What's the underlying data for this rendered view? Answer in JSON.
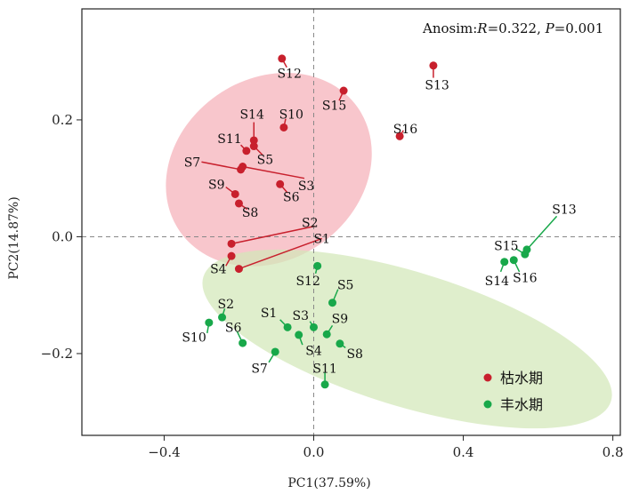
{
  "chart_data": {
    "type": "scatter",
    "xlabel": "PC1(37.59%)",
    "ylabel": "PC2(14.87%)",
    "xlim": [
      -0.62,
      0.82
    ],
    "ylim": [
      -0.34,
      0.39
    ],
    "xticks": [
      {
        "v": -0.4,
        "t": "−0.4"
      },
      {
        "v": 0.0,
        "t": "0.0"
      },
      {
        "v": 0.4,
        "t": "0.4"
      },
      {
        "v": 0.8,
        "t": "0.8"
      }
    ],
    "yticks": [
      {
        "v": 0.2,
        "t": "0.2"
      },
      {
        "v": 0.0,
        "t": "0.0"
      },
      {
        "v": -0.2,
        "t": "−0.2"
      }
    ],
    "annotation": {
      "prefix": "Anosim:",
      "r_symbol": "R",
      "r_value": "=0.322, ",
      "p_symbol": "P",
      "p_value": "=0.001"
    },
    "legend_position": "lower-right",
    "series": [
      {
        "name": "枯水期",
        "color": "#c8202d",
        "ellipse": {
          "cx": -0.12,
          "cy": 0.115,
          "rx": 0.29,
          "ry": 0.155,
          "angle": 35,
          "fill": "#f5b0b8"
        },
        "points": [
          {
            "id": "S1",
            "x": -0.2,
            "y": -0.055,
            "lx": 0.022,
            "ly": -0.003,
            "tx": 0.022,
            "ty": -0.003
          },
          {
            "id": "S2",
            "x": -0.22,
            "y": -0.012,
            "lx": -0.01,
            "ly": 0.024,
            "tx": 0.002,
            "ty": 0.018
          },
          {
            "id": "S3",
            "x": -0.19,
            "y": 0.12,
            "lx": -0.02,
            "ly": 0.087,
            "tx": -0.025,
            "ty": 0.1
          },
          {
            "id": "S4",
            "x": -0.22,
            "y": -0.033,
            "lx": -0.255,
            "ly": -0.055,
            "tx": -0.235,
            "ty": -0.05
          },
          {
            "id": "S5",
            "x": -0.16,
            "y": 0.155,
            "lx": -0.13,
            "ly": 0.132,
            "tx": -0.137,
            "ty": 0.14
          },
          {
            "id": "S6",
            "x": -0.09,
            "y": 0.09,
            "lx": -0.06,
            "ly": 0.068,
            "tx": -0.07,
            "ty": 0.075
          },
          {
            "id": "S7",
            "x": -0.195,
            "y": 0.115,
            "lx": -0.325,
            "ly": 0.128,
            "tx": -0.3,
            "ty": 0.128
          },
          {
            "id": "S8",
            "x": -0.2,
            "y": 0.057,
            "lx": -0.17,
            "ly": 0.042,
            "tx": -0.178,
            "ty": 0.047
          },
          {
            "id": "S9",
            "x": -0.21,
            "y": 0.073,
            "lx": -0.26,
            "ly": 0.09,
            "tx": -0.235,
            "ty": 0.085
          },
          {
            "id": "S10",
            "x": -0.08,
            "y": 0.187,
            "lx": -0.06,
            "ly": 0.21,
            "tx": -0.075,
            "ty": 0.202
          },
          {
            "id": "S11",
            "x": -0.18,
            "y": 0.147,
            "lx": -0.225,
            "ly": 0.168,
            "tx": -0.195,
            "ty": 0.157
          },
          {
            "id": "S12",
            "x": -0.085,
            "y": 0.305,
            "lx": -0.065,
            "ly": 0.28,
            "tx": -0.072,
            "ty": 0.29
          },
          {
            "id": "S13",
            "x": 0.32,
            "y": 0.293,
            "lx": 0.33,
            "ly": 0.26,
            "tx": 0.32,
            "ty": 0.272
          },
          {
            "id": "S14",
            "x": -0.16,
            "y": 0.165,
            "lx": -0.165,
            "ly": 0.21,
            "tx": -0.16,
            "ty": 0.196
          },
          {
            "id": "S15",
            "x": 0.08,
            "y": 0.25,
            "lx": 0.055,
            "ly": 0.225,
            "tx": 0.068,
            "ty": 0.233
          },
          {
            "id": "S16",
            "x": 0.23,
            "y": 0.172,
            "lx": 0.245,
            "ly": 0.185,
            "tx": 0.24,
            "ty": 0.182,
            "small": true
          }
        ]
      },
      {
        "name": "丰水期",
        "color": "#18a84a",
        "ellipse": {
          "cx": 0.25,
          "cy": -0.175,
          "rx": 0.57,
          "ry": 0.115,
          "angle": -17,
          "fill": "#d3e7b9"
        },
        "points": [
          {
            "id": "S1",
            "x": -0.07,
            "y": -0.155,
            "lx": -0.12,
            "ly": -0.13,
            "tx": -0.09,
            "ty": -0.142
          },
          {
            "id": "S2",
            "x": -0.245,
            "y": -0.138,
            "lx": -0.235,
            "ly": -0.115,
            "tx": -0.238,
            "ty": -0.123
          },
          {
            "id": "S3",
            "x": 0.0,
            "y": -0.155,
            "lx": -0.035,
            "ly": -0.135,
            "tx": -0.01,
            "ty": -0.145
          },
          {
            "id": "S4",
            "x": -0.04,
            "y": -0.168,
            "lx": 0.0,
            "ly": -0.195,
            "tx": -0.03,
            "ty": -0.185
          },
          {
            "id": "S5",
            "x": 0.05,
            "y": -0.113,
            "lx": 0.085,
            "ly": -0.082,
            "tx": 0.065,
            "ty": -0.09
          },
          {
            "id": "S6",
            "x": -0.19,
            "y": -0.182,
            "lx": -0.215,
            "ly": -0.155,
            "tx": -0.205,
            "ty": -0.162
          },
          {
            "id": "S7",
            "x": -0.103,
            "y": -0.197,
            "lx": -0.145,
            "ly": -0.225,
            "tx": -0.12,
            "ty": -0.215
          },
          {
            "id": "S8",
            "x": 0.07,
            "y": -0.183,
            "lx": 0.11,
            "ly": -0.2,
            "tx": 0.085,
            "ty": -0.19
          },
          {
            "id": "S9",
            "x": 0.035,
            "y": -0.167,
            "lx": 0.07,
            "ly": -0.14,
            "tx": 0.05,
            "ty": -0.152
          },
          {
            "id": "S10",
            "x": -0.28,
            "y": -0.147,
            "lx": -0.32,
            "ly": -0.172,
            "tx": -0.285,
            "ty": -0.165
          },
          {
            "id": "S11",
            "x": 0.03,
            "y": -0.253,
            "lx": 0.03,
            "ly": -0.225,
            "tx": 0.03,
            "ty": -0.232
          },
          {
            "id": "S12",
            "x": 0.01,
            "y": -0.05,
            "lx": -0.015,
            "ly": -0.075,
            "tx": 0.005,
            "ty": -0.063
          },
          {
            "id": "S13",
            "x": 0.57,
            "y": -0.022,
            "lx": 0.67,
            "ly": 0.047,
            "tx": 0.65,
            "ty": 0.035
          },
          {
            "id": "S14",
            "x": 0.51,
            "y": -0.043,
            "lx": 0.49,
            "ly": -0.075,
            "tx": 0.5,
            "ty": -0.06
          },
          {
            "id": "S15",
            "x": 0.565,
            "y": -0.03,
            "lx": 0.515,
            "ly": -0.015,
            "tx": 0.54,
            "ty": -0.02
          },
          {
            "id": "S16",
            "x": 0.535,
            "y": -0.04,
            "lx": 0.565,
            "ly": -0.07,
            "tx": 0.55,
            "ty": -0.06
          }
        ]
      }
    ]
  }
}
